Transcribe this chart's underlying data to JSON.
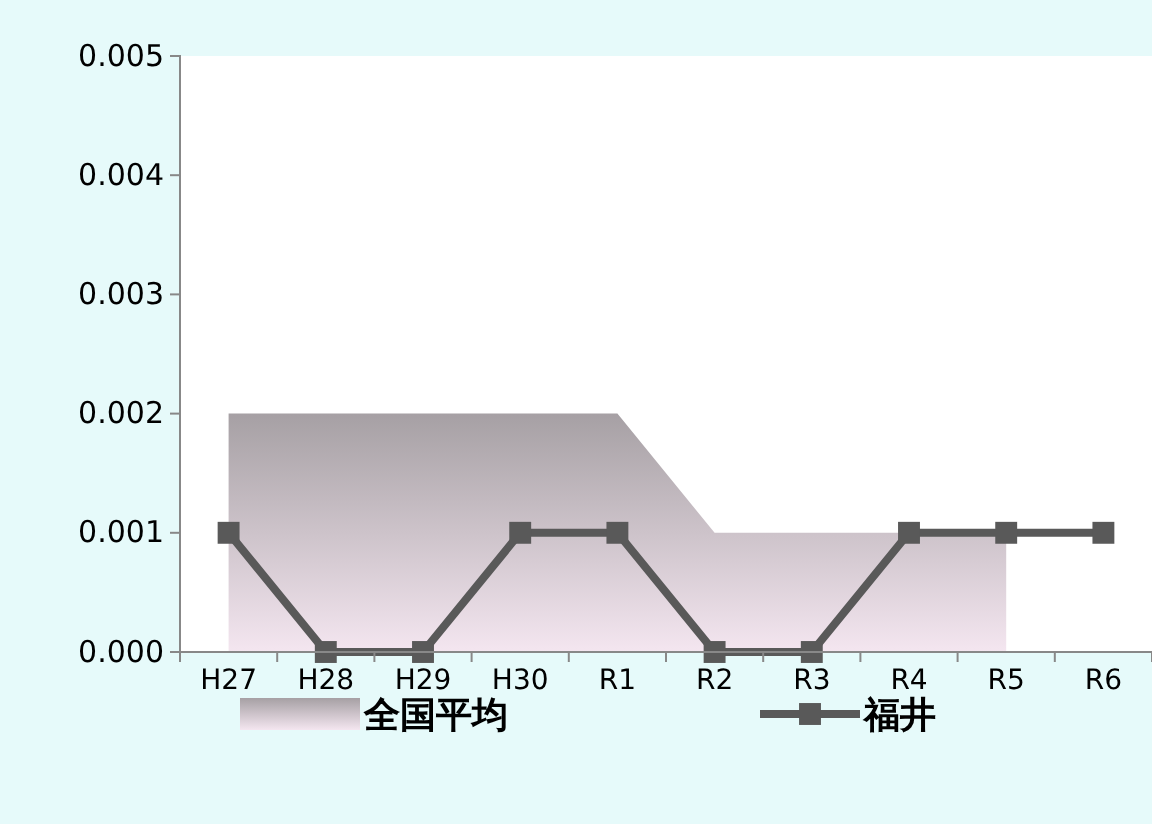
{
  "chart_data": {
    "type": "line",
    "categories": [
      "H27",
      "H28",
      "H29",
      "H30",
      "R1",
      "R2",
      "R3",
      "R4",
      "R5",
      "R6"
    ],
    "series": [
      {
        "name": "全国平均",
        "type": "area",
        "color": "#a6a0a4",
        "values": [
          0.002,
          0.002,
          0.002,
          0.002,
          0.002,
          0.001,
          0.001,
          0.001,
          0.001,
          null
        ]
      },
      {
        "name": "福井",
        "color": "#595959",
        "marker": "square",
        "values": [
          0.001,
          0,
          0,
          0.001,
          0.001,
          0,
          0,
          0.001,
          0.001,
          0.001
        ]
      }
    ],
    "ylim": [
      0,
      0.005
    ],
    "yticks": [
      {
        "value": 0,
        "label": "0.000"
      },
      {
        "value": 0.001,
        "label": "0.001"
      },
      {
        "value": 0.002,
        "label": "0.002"
      },
      {
        "value": 0.003,
        "label": "0.003"
      },
      {
        "value": 0.004,
        "label": "0.004"
      },
      {
        "value": 0.005,
        "label": "0.005"
      }
    ],
    "grid": false,
    "legend": "bottom",
    "line_style": "solid"
  }
}
